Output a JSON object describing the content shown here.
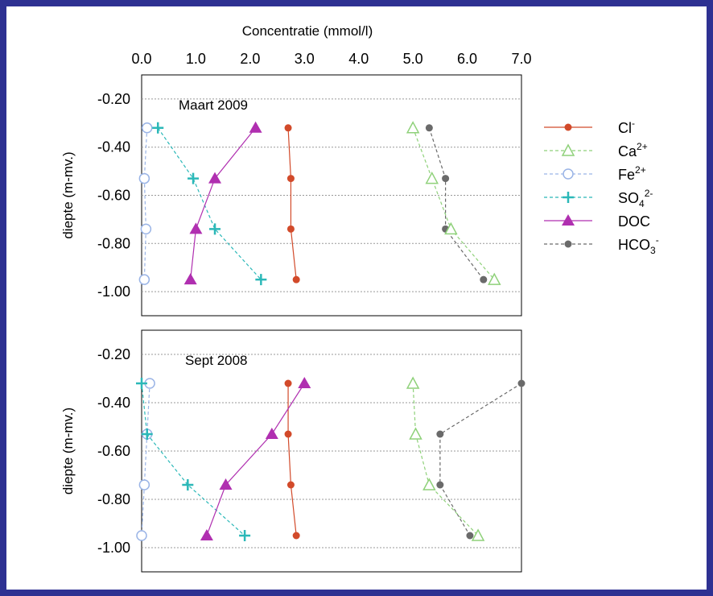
{
  "chart_data": {
    "type": "scatter",
    "xlabel": "Concentratie  (mmol/l)",
    "xticks": [
      "0.0",
      "1.0",
      "2.0",
      "3.0",
      "4.0",
      "5.0",
      "6.0",
      "7.0"
    ],
    "xlim": [
      0,
      7
    ],
    "legend_position": "right",
    "legend": [
      {
        "key": "cl",
        "base": "Cl",
        "sup": "-",
        "sub": "",
        "color": "#d24a2a",
        "marker": "filled-circle"
      },
      {
        "key": "ca",
        "base": "Ca",
        "sup": "2+",
        "sub": "",
        "color": "#8fd17a",
        "marker": "open-triangle"
      },
      {
        "key": "fe",
        "base": "Fe",
        "sup": "2+",
        "sub": "",
        "color": "#9ab4e6",
        "marker": "open-circle"
      },
      {
        "key": "so4",
        "base": "SO",
        "sup": "2-",
        "sub": "4",
        "color": "#2bb8b8",
        "marker": "plus"
      },
      {
        "key": "doc",
        "base": "DOC",
        "sup": "",
        "sub": "",
        "color": "#b02fb0",
        "marker": "filled-triangle"
      },
      {
        "key": "hco3",
        "base": "HCO",
        "sup": "-",
        "sub": "3",
        "color": "#6a6a6a",
        "marker": "filled-circle"
      }
    ],
    "panels": [
      {
        "title": "Maart 2009",
        "ylabel": "diepte  (m-mv.)",
        "yticks": [
          "-0.20",
          "-0.40",
          "-0.60",
          "-0.80",
          "-1.00"
        ],
        "ylim": [
          -1.1,
          -0.1
        ],
        "grid": true,
        "depths": [
          -0.32,
          -0.53,
          -0.74,
          -0.95
        ],
        "series": {
          "cl": [
            2.7,
            2.75,
            2.75,
            2.85
          ],
          "ca": [
            5.0,
            5.35,
            5.7,
            6.5
          ],
          "fe": [
            0.1,
            0.05,
            0.08,
            0.05
          ],
          "so4": [
            0.3,
            0.95,
            1.35,
            2.2
          ],
          "doc": [
            2.1,
            1.35,
            1.0,
            0.9
          ],
          "hco3": [
            5.3,
            5.6,
            5.6,
            6.3
          ]
        }
      },
      {
        "title": "Sept 2008",
        "ylabel": "diepte  (m-mv.)",
        "yticks": [
          "-0.20",
          "-0.40",
          "-0.60",
          "-0.80",
          "-1.00"
        ],
        "ylim": [
          -1.1,
          -0.1
        ],
        "grid": true,
        "depths": [
          -0.32,
          -0.53,
          -0.74,
          -0.95
        ],
        "series": {
          "cl": [
            2.7,
            2.7,
            2.75,
            2.85
          ],
          "ca": [
            5.0,
            5.05,
            5.3,
            6.2
          ],
          "fe": [
            0.15,
            0.1,
            0.05,
            0.0
          ],
          "so4": [
            0.0,
            0.1,
            0.85,
            1.9
          ],
          "doc": [
            3.0,
            2.4,
            1.55,
            1.2
          ],
          "hco3": [
            7.0,
            5.5,
            5.5,
            6.05
          ]
        }
      }
    ]
  }
}
